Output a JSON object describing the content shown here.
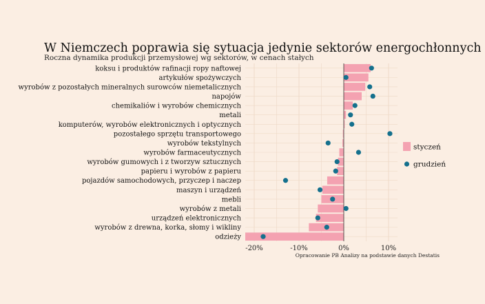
{
  "title": "W Niemczech poprawia się sytuacja jedynie sektorów energochłonnych",
  "subtitle": "Roczna dynamika produkcji przemysłowej wg sektorów, w cenach stałych",
  "source": "Opracowanie PB Analizy na podstawie danych Destatis",
  "colors": {
    "bar": "#f4a2b1",
    "dot": "#14708d",
    "background": "#fbeee3",
    "grid": "#eed9c6",
    "zero_line": "#333333"
  },
  "chart_data": {
    "type": "bar",
    "orientation": "horizontal",
    "x_unit": "%",
    "xlim": [
      -22,
      12
    ],
    "xticks": [
      -20,
      -10,
      0,
      10
    ],
    "xtick_labels": [
      "-20%",
      "-10%",
      "0%",
      "10%"
    ],
    "grid": true,
    "legend_position": "right",
    "categories": [
      "koksu i produktów rafinacji ropy naftowej",
      "artykułów spożywczych",
      "wyrobów z pozostałych mineralnych surowców niemetalicznych",
      "napojów",
      "chemikaliów i wyrobów chemicznych",
      "metali",
      "komputerów, wyrobów elektronicznych i optycznych",
      "pozostałego sprzętu transportowego",
      "wyrobów tekstylnych",
      "wyrobów farmaceutycznych",
      "wyrobów gumowych i z tworzyw sztucznych",
      "papieru i wyrobów z papieru",
      "pojazdów samochodowych, przyczep i naczep",
      "maszyn i urządzeń",
      "mebli",
      "wyrobów z metali",
      "urządzeń elektronicznych",
      "wyrobów z drewna, korka, słomy i wikliny",
      "odzieży"
    ],
    "series": [
      {
        "name": "styczeń",
        "mark": "bar",
        "values": [
          6.0,
          5.5,
          4.8,
          4.0,
          2.0,
          0.5,
          0.2,
          -0.2,
          -0.3,
          -1.0,
          -1.3,
          -1.5,
          -3.7,
          -4.8,
          -5.0,
          -5.8,
          -6.2,
          -7.8,
          -22.0
        ]
      },
      {
        "name": "grudzień",
        "mark": "dot",
        "values": [
          6.2,
          0.5,
          5.8,
          6.5,
          2.5,
          1.5,
          1.8,
          10.3,
          -3.5,
          3.3,
          -1.5,
          -1.8,
          -13.0,
          -5.3,
          -2.5,
          0.5,
          -5.8,
          -3.8,
          -18.0
        ]
      }
    ]
  }
}
